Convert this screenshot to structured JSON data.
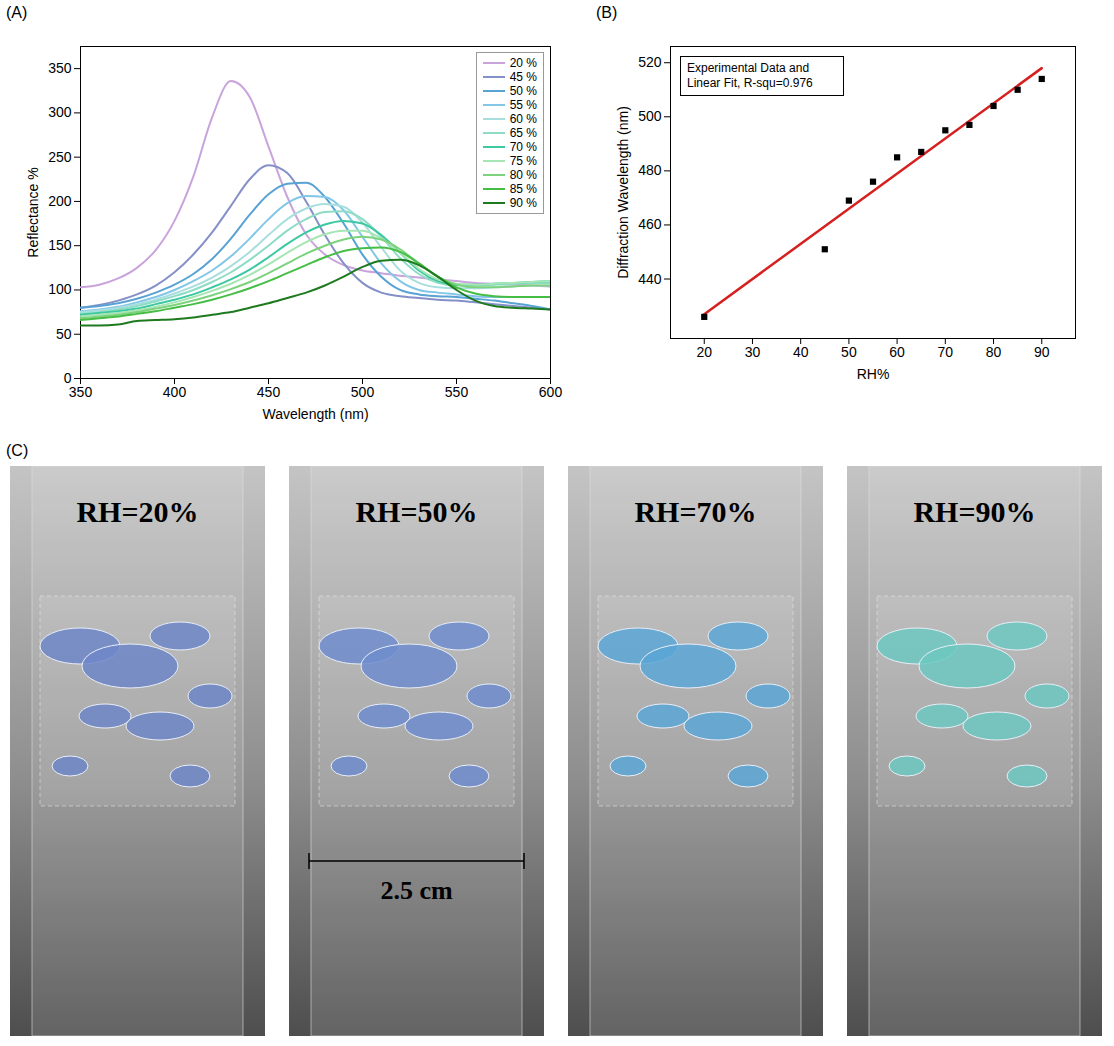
{
  "chart_data": [
    {
      "panel_label": "(A)",
      "type": "line",
      "x_label": "Wavelength (nm)",
      "y_label": "Reflectance %",
      "x": [
        350,
        360,
        370,
        380,
        390,
        400,
        410,
        420,
        430,
        440,
        450,
        460,
        470,
        480,
        490,
        500,
        510,
        520,
        530,
        540,
        550,
        560,
        570,
        580,
        590,
        600
      ],
      "series": [
        {
          "name": "20 %",
          "color": "#c9a4dc",
          "values": [
            103,
            106,
            113,
            125,
            145,
            178,
            228,
            295,
            336,
            318,
            262,
            205,
            163,
            140,
            128,
            122,
            119,
            116,
            114,
            112,
            110,
            108,
            107,
            106,
            105,
            104
          ]
        },
        {
          "name": "45 %",
          "color": "#8590c8",
          "values": [
            80,
            83,
            88,
            95,
            105,
            120,
            140,
            165,
            195,
            225,
            241,
            232,
            200,
            162,
            130,
            108,
            97,
            93,
            91,
            89,
            88,
            86,
            84,
            82,
            80,
            78
          ]
        },
        {
          "name": "50 %",
          "color": "#58a2d4",
          "values": [
            80,
            82,
            85,
            90,
            97,
            106,
            118,
            135,
            158,
            185,
            208,
            220,
            221,
            205,
            175,
            140,
            115,
            100,
            95,
            93,
            92,
            90,
            88,
            85,
            82,
            78
          ]
        },
        {
          "name": "55 %",
          "color": "#82c6e8",
          "values": [
            76,
            78,
            81,
            86,
            92,
            100,
            110,
            122,
            138,
            158,
            180,
            198,
            206,
            205,
            190,
            160,
            130,
            110,
            100,
            97,
            95,
            93,
            92,
            92,
            92,
            92
          ]
        },
        {
          "name": "60 %",
          "color": "#a8dede",
          "values": [
            75,
            77,
            80,
            84,
            89,
            96,
            104,
            114,
            127,
            143,
            162,
            180,
            192,
            197,
            194,
            176,
            148,
            122,
            108,
            103,
            102,
            102,
            103,
            104,
            105,
            105
          ]
        },
        {
          "name": "65 %",
          "color": "#8edcc6",
          "values": [
            73,
            75,
            78,
            82,
            87,
            93,
            100,
            109,
            120,
            134,
            150,
            167,
            180,
            188,
            189,
            180,
            160,
            136,
            118,
            108,
            105,
            105,
            106,
            107,
            108,
            108
          ]
        },
        {
          "name": "70 %",
          "color": "#3cc8a0",
          "values": [
            72,
            74,
            76,
            79,
            84,
            89,
            95,
            103,
            112,
            123,
            137,
            152,
            165,
            174,
            178,
            175,
            162,
            142,
            122,
            110,
            106,
            106,
            107,
            108,
            109,
            110
          ]
        },
        {
          "name": "75 %",
          "color": "#a6e6b4",
          "values": [
            70,
            72,
            74,
            77,
            81,
            86,
            92,
            99,
            107,
            117,
            129,
            142,
            154,
            163,
            167,
            167,
            158,
            142,
            124,
            112,
            107,
            106,
            107,
            108,
            109,
            110
          ]
        },
        {
          "name": "80 %",
          "color": "#7dd27d",
          "values": [
            68,
            70,
            72,
            75,
            79,
            83,
            88,
            94,
            101,
            109,
            119,
            130,
            141,
            150,
            157,
            160,
            157,
            146,
            130,
            115,
            106,
            103,
            103,
            104,
            105,
            105
          ]
        },
        {
          "name": "85 %",
          "color": "#46be46",
          "values": [
            66,
            68,
            70,
            73,
            76,
            80,
            84,
            89,
            95,
            102,
            110,
            119,
            128,
            137,
            144,
            147,
            148,
            143,
            130,
            115,
            103,
            96,
            93,
            92,
            92,
            92
          ]
        },
        {
          "name": "90 %",
          "color": "#1e7a1e",
          "values": [
            60,
            60,
            61,
            65,
            66,
            67,
            69,
            72,
            75,
            80,
            85,
            91,
            97,
            105,
            115,
            126,
            133,
            134,
            128,
            115,
            100,
            88,
            82,
            80,
            79,
            78
          ]
        }
      ],
      "xlim": [
        350,
        600
      ],
      "xticks": [
        350,
        400,
        450,
        500,
        550,
        600
      ],
      "ylim": [
        0,
        375
      ],
      "yticks": [
        0,
        50,
        100,
        150,
        200,
        250,
        300,
        350
      ],
      "legend": "top-right"
    },
    {
      "panel_label": "(B)",
      "type": "scatter",
      "x_label": "RH%",
      "y_label": "Diffraction Wavelength (nm)",
      "x": [
        20,
        45,
        50,
        55,
        60,
        65,
        70,
        75,
        80,
        85,
        90
      ],
      "values": [
        426,
        451,
        469,
        476,
        485,
        487,
        495,
        497,
        504,
        510,
        514
      ],
      "color": "#000000",
      "marker": "square",
      "fit": {
        "x": [
          20,
          90
        ],
        "values": [
          427,
          518
        ],
        "color": "#d62020"
      },
      "annotation": "Experimental Data and Linear Fit, R-squ=0.976",
      "xlim": [
        13,
        97
      ],
      "xticks": [
        20,
        30,
        40,
        50,
        60,
        70,
        80,
        90
      ],
      "ylim": [
        418,
        526
      ],
      "yticks": [
        440,
        460,
        480,
        500,
        520
      ]
    }
  ],
  "photo_panel": {
    "panel_label": "(C)",
    "images": [
      "RH=20%",
      "RH=50%",
      "RH=70%",
      "RH=90%"
    ],
    "scale_bar": "2.5 cm"
  }
}
